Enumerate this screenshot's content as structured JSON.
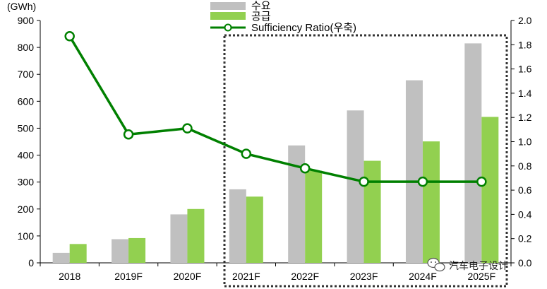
{
  "chart_data": {
    "type": "bar+line",
    "categories": [
      "2018",
      "2019F",
      "2020F",
      "2021F",
      "2022F",
      "2023F",
      "2024F",
      "2025F"
    ],
    "series": [
      {
        "name": "수요",
        "type": "bar",
        "axis": "left",
        "color": "#c0c0c0",
        "values": [
          37,
          88,
          180,
          273,
          436,
          566,
          678,
          815
        ]
      },
      {
        "name": "공급",
        "type": "bar",
        "axis": "left",
        "color": "#92d050",
        "values": [
          70,
          92,
          200,
          246,
          342,
          379,
          451,
          542
        ]
      },
      {
        "name": "Sufficiency Ratio(우축)",
        "type": "line",
        "axis": "right",
        "color": "#008000",
        "values": [
          1.87,
          1.06,
          1.11,
          0.9,
          0.78,
          0.67,
          0.67,
          0.67
        ]
      }
    ],
    "y_left": {
      "label": "(GWh)",
      "min": 0,
      "max": 900,
      "ticks": [
        0,
        100,
        200,
        300,
        400,
        500,
        600,
        700,
        800,
        900
      ]
    },
    "y_right": {
      "min": 0,
      "max": 2.0,
      "ticks": [
        "0.0",
        "0.2",
        "0.4",
        "0.6",
        "0.8",
        "1.0",
        "1.2",
        "1.4",
        "1.6",
        "1.8",
        "2.0"
      ]
    },
    "highlight_from_category": "2021F",
    "legend_placement": "top-center",
    "grid": false
  },
  "watermark": {
    "text": "汽车电子设计",
    "icon": "wechat-icon"
  }
}
